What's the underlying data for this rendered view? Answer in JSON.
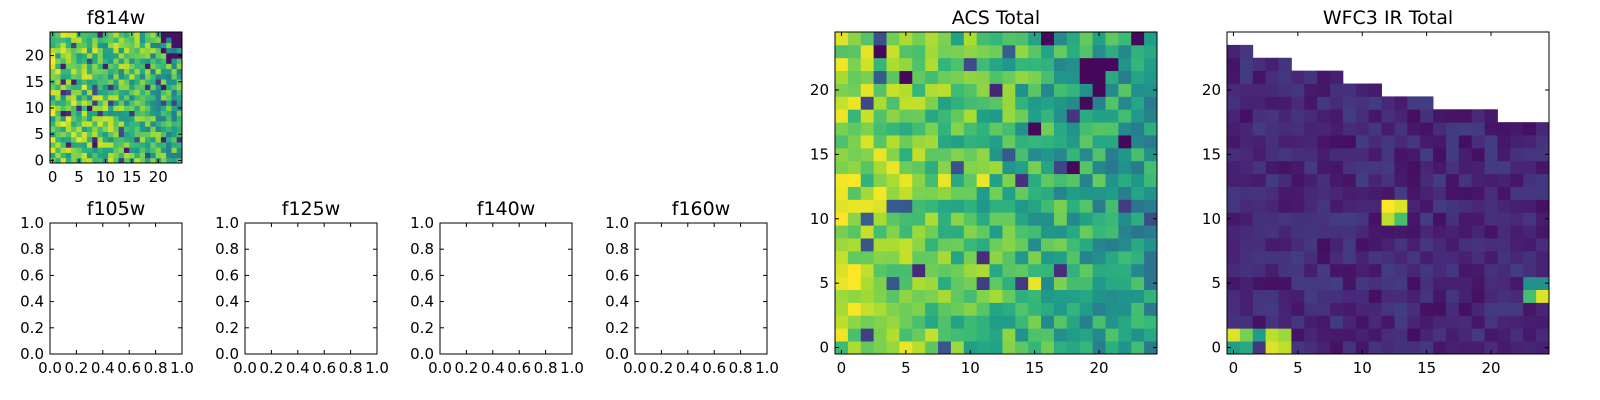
{
  "chart_data": [
    {
      "type": "heatmap",
      "title": "f814w",
      "xticks": [
        0,
        5,
        10,
        15,
        20
      ],
      "yticks": [
        0,
        5,
        10,
        15,
        20
      ],
      "xlim": [
        -0.5,
        24.5
      ],
      "ylim": [
        -0.5,
        24.5
      ],
      "colormap": "viridis",
      "grid": "25x25",
      "note": "noisy image with values mostly in the upper (green-yellow) range"
    },
    {
      "type": "empty",
      "title": "f105w",
      "xticks": [
        "0.0",
        "0.2",
        "0.4",
        "0.6",
        "0.8",
        "1.0"
      ],
      "yticks": [
        "0.0",
        "0.2",
        "0.4",
        "0.6",
        "0.8",
        "1.0"
      ],
      "xlim": [
        0,
        1
      ],
      "ylim": [
        0,
        1
      ]
    },
    {
      "type": "empty",
      "title": "f125w",
      "xticks": [
        "0.0",
        "0.2",
        "0.4",
        "0.6",
        "0.8",
        "1.0"
      ],
      "yticks": [
        "0.0",
        "0.2",
        "0.4",
        "0.6",
        "0.8",
        "1.0"
      ],
      "xlim": [
        0,
        1
      ],
      "ylim": [
        0,
        1
      ]
    },
    {
      "type": "empty",
      "title": "f140w",
      "xticks": [
        "0.0",
        "0.2",
        "0.4",
        "0.6",
        "0.8",
        "1.0"
      ],
      "yticks": [
        "0.0",
        "0.2",
        "0.4",
        "0.6",
        "0.8",
        "1.0"
      ],
      "xlim": [
        0,
        1
      ],
      "ylim": [
        0,
        1
      ]
    },
    {
      "type": "empty",
      "title": "f160w",
      "xticks": [
        "0.0",
        "0.2",
        "0.4",
        "0.6",
        "0.8",
        "1.0"
      ],
      "yticks": [
        "0.0",
        "0.2",
        "0.4",
        "0.6",
        "0.8",
        "1.0"
      ],
      "xlim": [
        0,
        1
      ],
      "ylim": [
        0,
        1
      ]
    },
    {
      "type": "heatmap",
      "title": "ACS Total",
      "xticks": [
        0,
        5,
        10,
        15,
        20
      ],
      "yticks": [
        0,
        5,
        10,
        15,
        20
      ],
      "xlim": [
        -0.5,
        24.5
      ],
      "ylim": [
        -0.5,
        24.5
      ],
      "colormap": "viridis",
      "grid": "25x25",
      "note": "noisy image, brighter (yellow) toward the left edge, dark pixels near top-right"
    },
    {
      "type": "heatmap",
      "title": "WFC3 IR Total",
      "xticks": [
        0,
        5,
        10,
        15,
        20
      ],
      "yticks": [
        0,
        5,
        10,
        15,
        20
      ],
      "xlim": [
        -0.5,
        24.5
      ],
      "ylim": [
        -0.5,
        24.5
      ],
      "colormap": "viridis",
      "grid": "25x25",
      "note": "mostly low (dark purple) values; upper-right triangle is blank (no data); bright sources near (0-4, 0-1), (12-13, 10-11) and (23-24, 4-5)"
    }
  ]
}
